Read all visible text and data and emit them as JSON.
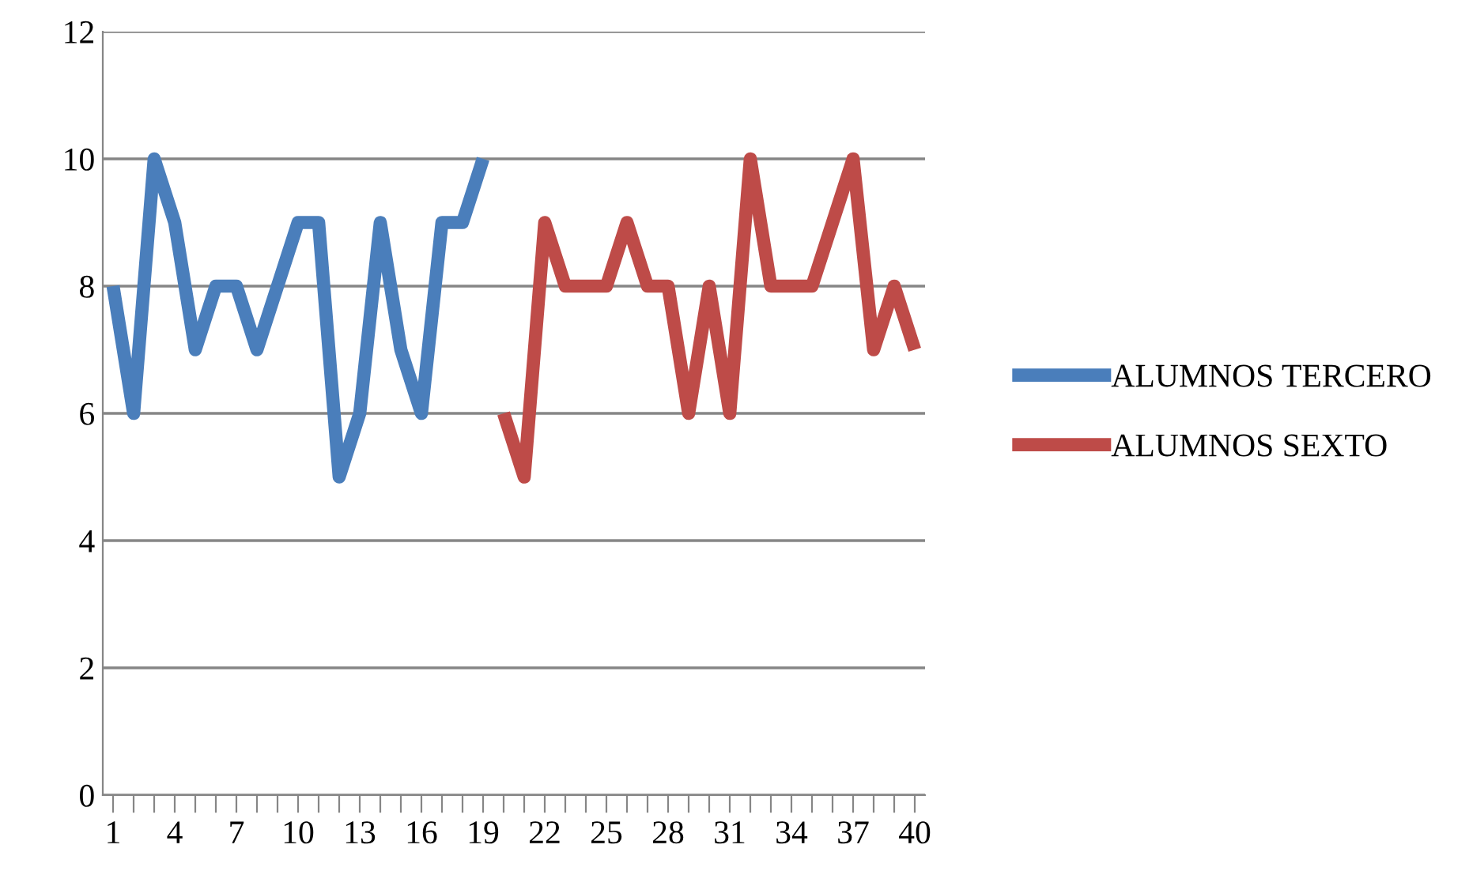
{
  "chart_data": {
    "type": "line",
    "categories": [
      "1",
      null,
      null,
      "4",
      null,
      null,
      "7",
      null,
      null,
      "10",
      null,
      null,
      "13",
      null,
      null,
      "16",
      null,
      null,
      "19",
      null,
      null,
      "22",
      null,
      null,
      "25",
      null,
      null,
      "28",
      null,
      null,
      "31",
      null,
      null,
      "34",
      null,
      null,
      "37",
      null,
      null,
      "40"
    ],
    "series": [
      {
        "name": "ALUMNOS TERCERO",
        "color": "#4a7ebb",
        "values": [
          8,
          6,
          10,
          9,
          7,
          8,
          8,
          7,
          8,
          9,
          9,
          5,
          6,
          9,
          7,
          6,
          9,
          9,
          10,
          null,
          null,
          null,
          null,
          null,
          null,
          null,
          null,
          null,
          null,
          null,
          null,
          null,
          null,
          null,
          null,
          null,
          null,
          null,
          null,
          null
        ]
      },
      {
        "name": "ALUMNOS SEXTO",
        "color": "#be4b48",
        "values": [
          null,
          null,
          null,
          null,
          null,
          null,
          null,
          null,
          null,
          null,
          null,
          null,
          null,
          null,
          null,
          null,
          null,
          null,
          null,
          6,
          5,
          9,
          8,
          8,
          8,
          9,
          8,
          8,
          6,
          8,
          6,
          10,
          8,
          8,
          8,
          9,
          10,
          7,
          8,
          7
        ]
      }
    ],
    "ylim": [
      0,
      12
    ],
    "yticks": [
      0,
      2,
      4,
      6,
      8,
      10,
      12
    ],
    "grid": "y",
    "legend": "right",
    "marker": "none",
    "line_style": "solid"
  }
}
